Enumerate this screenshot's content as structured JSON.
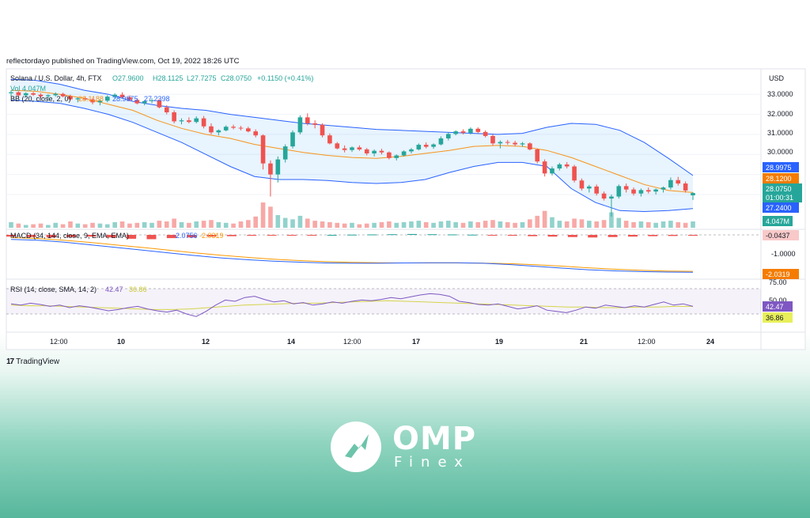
{
  "publisher_line": "reflectordayo published on TradingView.com, Oct 19, 2022 18:26 UTC",
  "tradingview_label": "TradingView",
  "brand": {
    "name": "OMP",
    "sub": "Finex"
  },
  "colors": {
    "up": "#26a69a",
    "down": "#ef5350",
    "bb_basis": "#f7931a",
    "bb_band": "#2962ff",
    "rsi": "#7e57c2",
    "rsi_ma": "#d4d44a",
    "macd": "#2962ff",
    "signal": "#ff9800"
  },
  "chart_data": {
    "type": "candlestick",
    "symbol_line": {
      "symbol": "Solana / U.S. Dollar, 4h, FTX",
      "open": "O27.9600",
      "high": "H28.1125",
      "low": "L27.7275",
      "close": "C28.0750",
      "change": "+0.1150 (+0.41%)"
    },
    "vol_label": "Vol  4.047M",
    "bb_label": "BB (20, close, 2, 0)",
    "bb_values": [
      "28.1188",
      "28.9975",
      "27.2398"
    ],
    "currency": "USD",
    "price_axis": [
      "33.0000",
      "32.0000",
      "31.0000",
      "30.0000"
    ],
    "price_ylim": [
      26.5,
      33.6
    ],
    "price_badges": {
      "bb_upper": "28.9975",
      "bb_basis": "28.1200",
      "last": "28.0750",
      "countdown": "01:00:31",
      "bb_lower": "27.2400",
      "volume": "4.047M"
    },
    "x_ticks": [
      "12:00",
      "10",
      "12",
      "14",
      "12:00",
      "17",
      "19",
      "21",
      "12:00",
      "24"
    ],
    "candles_ohlc": [
      [
        33.05,
        33.2,
        32.9,
        33.1
      ],
      [
        33.1,
        33.15,
        32.88,
        32.95
      ],
      [
        32.95,
        33.1,
        32.85,
        33.05
      ],
      [
        33.05,
        33.12,
        32.92,
        32.98
      ],
      [
        32.98,
        33.05,
        32.8,
        32.9
      ],
      [
        32.9,
        33.0,
        32.75,
        32.95
      ],
      [
        32.95,
        33.1,
        32.88,
        33.02
      ],
      [
        33.02,
        33.08,
        32.85,
        32.9
      ],
      [
        32.9,
        32.98,
        32.7,
        32.75
      ],
      [
        32.75,
        32.85,
        32.6,
        32.8
      ],
      [
        32.8,
        32.9,
        32.7,
        32.74
      ],
      [
        32.74,
        32.82,
        32.5,
        32.6
      ],
      [
        32.6,
        32.75,
        32.45,
        32.68
      ],
      [
        32.68,
        32.95,
        32.6,
        32.88
      ],
      [
        32.88,
        33.05,
        32.8,
        32.98
      ],
      [
        32.98,
        33.1,
        32.8,
        32.85
      ],
      [
        32.85,
        32.95,
        32.65,
        32.72
      ],
      [
        32.72,
        32.8,
        32.5,
        32.55
      ],
      [
        32.55,
        32.7,
        32.45,
        32.66
      ],
      [
        32.66,
        32.8,
        32.55,
        32.7
      ],
      [
        32.7,
        32.75,
        32.3,
        32.35
      ],
      [
        32.35,
        32.45,
        32.0,
        32.1
      ],
      [
        32.1,
        32.2,
        31.55,
        31.65
      ],
      [
        31.65,
        31.8,
        31.5,
        31.7
      ],
      [
        31.7,
        31.85,
        31.55,
        31.62
      ],
      [
        31.62,
        31.9,
        31.55,
        31.8
      ],
      [
        31.8,
        31.92,
        31.3,
        31.4
      ],
      [
        31.4,
        31.55,
        31.0,
        31.1
      ],
      [
        31.1,
        31.25,
        30.95,
        31.2
      ],
      [
        31.2,
        31.45,
        31.15,
        31.38
      ],
      [
        31.38,
        31.48,
        31.25,
        31.33
      ],
      [
        31.33,
        31.42,
        31.2,
        31.3
      ],
      [
        31.3,
        31.38,
        31.1,
        31.15
      ],
      [
        31.15,
        31.25,
        30.85,
        30.95
      ],
      [
        30.95,
        31.0,
        29.25,
        29.55
      ],
      [
        29.55,
        29.7,
        27.9,
        29.0
      ],
      [
        29.0,
        29.9,
        28.6,
        29.75
      ],
      [
        29.75,
        30.5,
        29.6,
        30.4
      ],
      [
        30.4,
        31.2,
        30.3,
        31.1
      ],
      [
        31.1,
        31.95,
        31.0,
        31.85
      ],
      [
        31.85,
        32.05,
        31.45,
        31.55
      ],
      [
        31.55,
        31.7,
        31.3,
        31.48
      ],
      [
        31.48,
        31.55,
        30.85,
        30.95
      ],
      [
        30.95,
        31.05,
        30.5,
        30.55
      ],
      [
        30.55,
        30.62,
        30.25,
        30.3
      ],
      [
        30.3,
        30.45,
        30.1,
        30.22
      ],
      [
        30.22,
        30.4,
        30.12,
        30.35
      ],
      [
        30.35,
        30.45,
        30.18,
        30.25
      ],
      [
        30.25,
        30.32,
        29.95,
        30.05
      ],
      [
        30.05,
        30.25,
        29.9,
        30.18
      ],
      [
        30.18,
        30.28,
        30.0,
        30.1
      ],
      [
        30.1,
        30.15,
        29.75,
        29.82
      ],
      [
        29.82,
        30.0,
        29.7,
        29.95
      ],
      [
        29.95,
        30.2,
        29.9,
        30.15
      ],
      [
        30.15,
        30.32,
        30.05,
        30.25
      ],
      [
        30.25,
        30.55,
        30.2,
        30.48
      ],
      [
        30.48,
        30.6,
        30.3,
        30.38
      ],
      [
        30.38,
        30.55,
        30.28,
        30.5
      ],
      [
        30.5,
        30.9,
        30.45,
        30.8
      ],
      [
        30.8,
        31.1,
        30.7,
        31.02
      ],
      [
        31.02,
        31.2,
        30.95,
        31.15
      ],
      [
        31.15,
        31.25,
        31.0,
        31.08
      ],
      [
        31.08,
        31.35,
        31.0,
        31.28
      ],
      [
        31.28,
        31.35,
        31.05,
        31.12
      ],
      [
        31.12,
        31.2,
        30.85,
        30.92
      ],
      [
        30.92,
        31.0,
        30.45,
        30.55
      ],
      [
        30.55,
        30.7,
        30.3,
        30.62
      ],
      [
        30.62,
        30.72,
        30.48,
        30.58
      ],
      [
        30.58,
        30.68,
        30.42,
        30.5
      ],
      [
        30.5,
        30.62,
        30.38,
        30.55
      ],
      [
        30.55,
        30.6,
        30.2,
        30.25
      ],
      [
        30.25,
        30.3,
        29.55,
        29.65
      ],
      [
        29.65,
        29.75,
        28.9,
        29.05
      ],
      [
        29.05,
        29.4,
        28.95,
        29.3
      ],
      [
        29.3,
        29.58,
        29.2,
        29.5
      ],
      [
        29.5,
        29.62,
        29.3,
        29.4
      ],
      [
        29.4,
        29.48,
        28.6,
        28.7
      ],
      [
        28.7,
        28.8,
        28.2,
        28.3
      ],
      [
        28.3,
        28.48,
        28.1,
        28.4
      ],
      [
        28.4,
        28.5,
        27.95,
        28.05
      ],
      [
        28.05,
        28.15,
        27.7,
        27.8
      ],
      [
        27.8,
        28.0,
        26.9,
        27.9
      ],
      [
        27.9,
        28.5,
        27.8,
        28.42
      ],
      [
        28.42,
        28.55,
        28.1,
        28.25
      ],
      [
        28.25,
        28.35,
        27.95,
        28.05
      ],
      [
        28.05,
        28.3,
        27.9,
        28.22
      ],
      [
        28.22,
        28.35,
        28.05,
        28.15
      ],
      [
        28.15,
        28.3,
        28.0,
        28.25
      ],
      [
        28.25,
        28.4,
        28.1,
        28.35
      ],
      [
        28.35,
        28.85,
        28.25,
        28.72
      ],
      [
        28.72,
        28.88,
        28.45,
        28.55
      ],
      [
        28.55,
        28.65,
        28.1,
        28.2
      ],
      [
        27.96,
        28.1125,
        27.7275,
        28.075
      ]
    ],
    "bb_basis_series": [
      33.2,
      33.15,
      33.0,
      32.8,
      32.5,
      32.2,
      31.7,
      31.3,
      31.0,
      30.8,
      30.5,
      30.3,
      30.1,
      29.95,
      29.85,
      29.8,
      29.9,
      30.05,
      30.2,
      30.4,
      30.45,
      30.4,
      30.2,
      29.85,
      29.4,
      28.95,
      28.5,
      28.2,
      28.1
    ],
    "bb_upper_series": [
      33.75,
      33.7,
      33.5,
      33.2,
      33.0,
      32.65,
      32.45,
      32.3,
      32.2,
      32.0,
      31.85,
      31.7,
      31.55,
      31.45,
      31.35,
      31.25,
      31.2,
      31.15,
      31.1,
      31.05,
      31.0,
      31.05,
      31.35,
      31.55,
      31.5,
      31.2,
      30.6,
      29.8,
      28.95
    ],
    "bb_lower_series": [
      32.7,
      32.65,
      32.55,
      32.3,
      32.0,
      31.6,
      31.1,
      30.6,
      30.0,
      29.4,
      28.9,
      28.75,
      28.75,
      28.7,
      28.6,
      28.55,
      28.6,
      28.75,
      29.1,
      29.4,
      29.6,
      29.6,
      29.4,
      28.3,
      27.6,
      27.2,
      27.15,
      27.2,
      27.3
    ],
    "volume_series": [
      0.8,
      0.6,
      0.4,
      0.5,
      0.6,
      0.4,
      0.7,
      0.5,
      0.9,
      0.6,
      0.5,
      0.7,
      0.6,
      0.5,
      0.8,
      0.9,
      0.6,
      0.7,
      0.8,
      0.7,
      1.0,
      0.9,
      1.3,
      0.8,
      0.7,
      0.9,
      1.0,
      1.1,
      0.8,
      0.7,
      0.6,
      0.9,
      1.1,
      1.6,
      3.6,
      3.0,
      1.8,
      1.4,
      1.2,
      1.7,
      1.3,
      1.0,
      0.9,
      0.8,
      0.7,
      0.6,
      0.7,
      0.5,
      0.6,
      0.7,
      0.8,
      0.9,
      0.7,
      0.8,
      0.9,
      1.0,
      0.8,
      0.7,
      0.9,
      1.0,
      0.8,
      0.7,
      0.9,
      0.8,
      1.0,
      1.1,
      0.9,
      0.8,
      0.7,
      0.8,
      1.2,
      1.7,
      2.4,
      1.5,
      1.0,
      0.9,
      1.3,
      1.2,
      1.0,
      0.9,
      1.1,
      2.2,
      1.4,
      1.0,
      0.8,
      0.9,
      0.8,
      0.7,
      0.9,
      1.0,
      0.8,
      0.7,
      0.9
    ],
    "macd_label": "MACD (34, 144, close, 9, EMA, EMA)",
    "macd_values": [
      "-2.0756",
      "-2.0319"
    ],
    "macd_axis": [
      "-1.0000"
    ],
    "macd_badges": {
      "hist": "-0.0437",
      "signal": "-2.0319"
    },
    "macd_line": [
      -0.25,
      -0.3,
      -0.4,
      -0.55,
      -0.7,
      -0.85,
      -1.0,
      -1.15,
      -1.28,
      -1.38,
      -1.46,
      -1.52,
      -1.56,
      -1.58,
      -1.58,
      -1.56,
      -1.55,
      -1.55,
      -1.58,
      -1.65,
      -1.75,
      -1.85,
      -1.94,
      -2.0,
      -2.04,
      -2.07,
      -2.08
    ],
    "signal_line": [
      -0.15,
      -0.2,
      -0.3,
      -0.42,
      -0.56,
      -0.7,
      -0.85,
      -1.0,
      -1.13,
      -1.25,
      -1.35,
      -1.43,
      -1.49,
      -1.53,
      -1.55,
      -1.56,
      -1.56,
      -1.56,
      -1.57,
      -1.6,
      -1.66,
      -1.74,
      -1.83,
      -1.91,
      -1.97,
      -2.01,
      -2.03
    ],
    "macd_hist": [
      -0.08,
      -0.1,
      -0.12,
      -0.1,
      -0.08,
      -0.12,
      -0.18,
      -0.2,
      -0.15,
      -0.12,
      -0.08,
      -0.06,
      -0.04,
      -0.03,
      -0.02,
      -0.01,
      0.0,
      0.01,
      0.02,
      0.03,
      0.04,
      0.03,
      0.02,
      0.01,
      -0.02,
      -0.04,
      -0.06,
      -0.08,
      -0.1,
      -0.12,
      -0.1,
      -0.08,
      -0.06,
      -0.05,
      -0.04
    ],
    "rsi_label": "RSI (14, close, SMA, 14, 2)",
    "rsi_values": [
      "42.47",
      "36.86"
    ],
    "rsi_axis": [
      "75.00",
      "50.00"
    ],
    "rsi_badges": {
      "rsi": "42.47",
      "ma": "36.86"
    },
    "rsi_series": [
      46,
      44,
      47,
      45,
      42,
      44,
      40,
      43,
      41,
      38,
      35,
      37,
      40,
      42,
      38,
      35,
      33,
      36,
      30,
      26,
      34,
      44,
      52,
      50,
      56,
      58,
      53,
      49,
      51,
      46,
      48,
      44,
      46,
      49,
      47,
      50,
      52,
      51,
      53,
      56,
      54,
      57,
      60,
      62,
      61,
      58,
      50,
      48,
      45,
      44,
      46,
      42,
      38,
      40,
      43,
      36,
      34,
      32,
      36,
      41,
      39,
      44,
      42,
      40,
      43,
      41,
      45,
      49,
      44,
      46,
      42
    ],
    "rsi_ma_series": [
      44,
      43,
      43,
      42,
      41,
      40,
      39,
      38,
      37,
      37,
      38,
      40,
      42,
      44,
      45,
      46,
      47,
      47,
      48,
      49,
      50,
      51,
      50,
      49,
      48,
      47,
      46,
      45,
      44,
      43,
      42,
      41,
      41,
      40,
      40,
      41,
      41,
      42,
      42
    ]
  }
}
